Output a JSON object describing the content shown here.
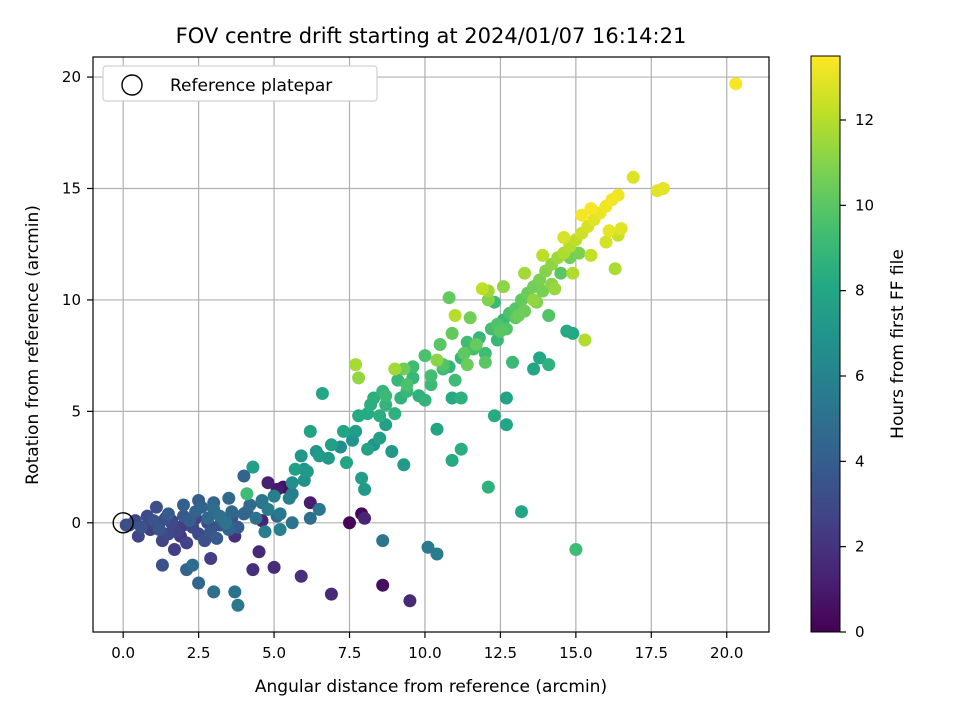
{
  "chart_data": {
    "type": "scatter",
    "title": "FOV centre drift starting at 2024/01/07 16:14:21",
    "xlabel": "Angular distance from reference (arcmin)",
    "ylabel": "Rotation from reference (arcmin)",
    "xlim": [
      -1.0,
      21.4
    ],
    "ylim": [
      -4.9,
      20.9
    ],
    "x_ticks": [
      0.0,
      2.5,
      5.0,
      7.5,
      10.0,
      12.5,
      15.0,
      17.5,
      20.0
    ],
    "x_tick_labels": [
      "0.0",
      "2.5",
      "5.0",
      "7.5",
      "10.0",
      "12.5",
      "15.0",
      "17.5",
      "20.0"
    ],
    "y_ticks": [
      0,
      5,
      10,
      15,
      20
    ],
    "y_tick_labels": [
      "0",
      "5",
      "10",
      "15",
      "20"
    ],
    "grid": true,
    "legend": {
      "placement": "top-left",
      "entries": [
        "Reference platepar"
      ]
    },
    "reference_point": {
      "x": 0.0,
      "y": 0.0
    },
    "colorbar": {
      "label": "Hours from first FF file",
      "colormap": "viridis",
      "range": [
        0,
        13.5
      ],
      "ticks": [
        0,
        2,
        4,
        6,
        8,
        10,
        12
      ],
      "tick_labels": [
        "0",
        "2",
        "4",
        "6",
        "8",
        "10",
        "12"
      ]
    },
    "series": [
      {
        "columns": [
          "x",
          "y",
          "hours"
        ],
        "points": [
          [
            0.2,
            -0.1,
            3.2
          ],
          [
            0.4,
            0.1,
            3.0
          ],
          [
            0.6,
            -0.2,
            3.4
          ],
          [
            0.8,
            0.3,
            3.1
          ],
          [
            1.0,
            0.1,
            3.5
          ],
          [
            1.2,
            -0.3,
            3.6
          ],
          [
            1.4,
            0.2,
            3.3
          ],
          [
            1.6,
            0.0,
            2.9
          ],
          [
            1.8,
            -0.4,
            2.6
          ],
          [
            2.0,
            0.3,
            3.8
          ],
          [
            2.2,
            0.1,
            4.0
          ],
          [
            2.4,
            0.5,
            4.2
          ],
          [
            2.6,
            0.7,
            4.4
          ],
          [
            2.8,
            0.2,
            4.6
          ],
          [
            3.0,
            0.6,
            4.8
          ],
          [
            3.2,
            0.3,
            5.0
          ],
          [
            3.4,
            0.0,
            5.2
          ],
          [
            3.6,
            0.5,
            4.5
          ],
          [
            3.8,
            -0.2,
            3.9
          ],
          [
            4.0,
            0.4,
            4.3
          ],
          [
            4.2,
            0.8,
            4.7
          ],
          [
            4.4,
            0.2,
            5.1
          ],
          [
            4.6,
            1.0,
            5.3
          ],
          [
            4.8,
            0.6,
            5.6
          ],
          [
            5.0,
            1.2,
            5.8
          ],
          [
            5.2,
            0.4,
            5.4
          ],
          [
            0.5,
            -0.6,
            2.8
          ],
          [
            0.9,
            -0.3,
            2.5
          ],
          [
            1.3,
            -0.8,
            2.7
          ],
          [
            1.5,
            -0.5,
            3.0
          ],
          [
            1.7,
            -1.2,
            2.4
          ],
          [
            1.9,
            -0.6,
            2.2
          ],
          [
            2.1,
            -0.9,
            2.6
          ],
          [
            2.3,
            -0.2,
            2.9
          ],
          [
            2.5,
            -0.5,
            3.1
          ],
          [
            2.7,
            -0.8,
            3.3
          ],
          [
            2.9,
            -0.4,
            3.6
          ],
          [
            3.1,
            -0.7,
            3.8
          ],
          [
            3.3,
            0.1,
            4.1
          ],
          [
            3.5,
            -0.3,
            4.4
          ],
          [
            3.7,
            -0.6,
            1.8
          ],
          [
            1.1,
            0.7,
            3.2
          ],
          [
            1.5,
            0.4,
            3.9
          ],
          [
            2.0,
            0.8,
            4.1
          ],
          [
            2.5,
            1.0,
            4.0
          ],
          [
            3.0,
            0.9,
            4.3
          ],
          [
            3.5,
            1.1,
            4.6
          ],
          [
            4.0,
            2.1,
            4.4
          ],
          [
            4.3,
            2.5,
            7.6
          ],
          [
            4.1,
            1.3,
            9.2
          ],
          [
            4.8,
            1.8,
            1.2
          ],
          [
            5.1,
            1.5,
            1.0
          ],
          [
            5.3,
            1.6,
            0.6
          ],
          [
            5.5,
            1.1,
            5.8
          ],
          [
            4.6,
            0.1,
            1.3
          ],
          [
            4.7,
            -0.4,
            5.7
          ],
          [
            5.2,
            -0.3,
            5.9
          ],
          [
            6.2,
            0.9,
            1.1
          ],
          [
            4.5,
            -1.3,
            1.5
          ],
          [
            4.3,
            -2.1,
            1.8
          ],
          [
            5.0,
            -2.0,
            1.7
          ],
          [
            5.9,
            -2.4,
            1.9
          ],
          [
            6.9,
            -3.2,
            1.6
          ],
          [
            3.7,
            -3.1,
            5.1
          ],
          [
            3.8,
            -3.7,
            5.4
          ],
          [
            3.0,
            -3.1,
            4.9
          ],
          [
            2.5,
            -2.7,
            4.5
          ],
          [
            2.3,
            -1.9,
            4.8
          ],
          [
            2.1,
            -2.1,
            4.2
          ],
          [
            1.3,
            -1.9,
            3.3
          ],
          [
            2.9,
            -1.6,
            2.5
          ],
          [
            7.5,
            0.0,
            0.2
          ],
          [
            7.9,
            0.4,
            0.3
          ],
          [
            8.0,
            0.2,
            1.4
          ],
          [
            8.6,
            -2.8,
            0.5
          ],
          [
            9.5,
            -3.5,
            1.6
          ],
          [
            10.1,
            -1.1,
            5.5
          ],
          [
            10.4,
            -1.4,
            5.6
          ],
          [
            8.6,
            -0.8,
            5.3
          ],
          [
            5.6,
            1.3,
            5.7
          ],
          [
            5.7,
            2.4,
            7.6
          ],
          [
            5.9,
            3.0,
            7.1
          ],
          [
            6.1,
            2.3,
            7.3
          ],
          [
            6.0,
            1.9,
            6.8
          ],
          [
            6.2,
            4.1,
            7.8
          ],
          [
            6.6,
            5.8,
            8.0
          ],
          [
            6.4,
            3.2,
            6.9
          ],
          [
            6.8,
            2.9,
            7.2
          ],
          [
            7.2,
            3.4,
            6.6
          ],
          [
            7.4,
            2.7,
            7.9
          ],
          [
            7.6,
            3.7,
            6.8
          ],
          [
            7.7,
            4.1,
            7.4
          ],
          [
            7.9,
            2.0,
            7.5
          ],
          [
            8.0,
            1.5,
            7.3
          ],
          [
            8.1,
            3.3,
            7.8
          ],
          [
            8.3,
            3.5,
            7.0
          ],
          [
            8.5,
            3.8,
            7.6
          ],
          [
            8.7,
            4.4,
            7.7
          ],
          [
            8.9,
            3.2,
            7.2
          ],
          [
            8.1,
            4.9,
            8.2
          ],
          [
            8.3,
            5.6,
            8.5
          ],
          [
            8.5,
            4.8,
            8.4
          ],
          [
            8.7,
            5.3,
            8.8
          ],
          [
            9.0,
            4.9,
            8.6
          ],
          [
            9.2,
            5.6,
            8.7
          ],
          [
            9.4,
            5.9,
            9.0
          ],
          [
            9.6,
            6.5,
            8.9
          ],
          [
            9.8,
            5.7,
            8.6
          ],
          [
            10.0,
            5.5,
            8.8
          ],
          [
            10.2,
            6.2,
            9.1
          ],
          [
            10.4,
            4.2,
            7.9
          ],
          [
            10.6,
            6.9,
            9.3
          ],
          [
            10.8,
            7.0,
            8.8
          ],
          [
            11.0,
            6.4,
            9.2
          ],
          [
            11.2,
            7.4,
            9.0
          ],
          [
            11.4,
            8.1,
            9.3
          ],
          [
            11.6,
            7.8,
            9.5
          ],
          [
            11.8,
            8.3,
            8.9
          ],
          [
            12.0,
            7.6,
            9.2
          ],
          [
            12.2,
            8.7,
            9.4
          ],
          [
            12.4,
            8.9,
            9.7
          ],
          [
            12.6,
            9.1,
            9.1
          ],
          [
            12.8,
            9.4,
            9.6
          ],
          [
            13.0,
            9.6,
            9.9
          ],
          [
            13.2,
            10.0,
            10.2
          ],
          [
            13.4,
            10.3,
            10.4
          ],
          [
            13.6,
            10.6,
            10.6
          ],
          [
            13.8,
            10.9,
            10.8
          ],
          [
            14.0,
            11.3,
            11.0
          ],
          [
            14.2,
            11.6,
            11.2
          ],
          [
            14.4,
            11.9,
            11.5
          ],
          [
            14.6,
            12.1,
            11.8
          ],
          [
            14.8,
            12.4,
            12.0
          ],
          [
            15.0,
            12.7,
            12.2
          ],
          [
            15.2,
            13.0,
            12.5
          ],
          [
            15.4,
            13.3,
            12.7
          ],
          [
            15.6,
            13.6,
            12.9
          ],
          [
            15.8,
            13.9,
            13.1
          ],
          [
            16.0,
            14.2,
            13.2
          ],
          [
            16.2,
            14.5,
            13.3
          ],
          [
            16.4,
            14.7,
            13.2
          ],
          [
            16.9,
            15.5,
            12.8
          ],
          [
            17.7,
            14.9,
            12.9
          ],
          [
            17.9,
            15.0,
            13.0
          ],
          [
            20.3,
            19.7,
            13.4
          ],
          [
            15.5,
            14.1,
            13.4
          ],
          [
            16.1,
            13.1,
            13.0
          ],
          [
            16.4,
            12.9,
            12.4
          ],
          [
            16.3,
            11.4,
            11.8
          ],
          [
            15.1,
            12.1,
            10.8
          ],
          [
            14.8,
            11.9,
            10.6
          ],
          [
            14.5,
            11.2,
            10.0
          ],
          [
            14.2,
            10.7,
            11.1
          ],
          [
            13.9,
            10.4,
            10.7
          ],
          [
            13.6,
            10.0,
            11.3
          ],
          [
            13.3,
            9.5,
            10.5
          ],
          [
            13.0,
            9.2,
            10.1
          ],
          [
            12.7,
            8.7,
            9.8
          ],
          [
            12.4,
            8.2,
            9.0
          ],
          [
            12.1,
            10.4,
            11.5
          ],
          [
            11.9,
            10.5,
            12.2
          ],
          [
            10.8,
            10.1,
            10.2
          ],
          [
            11.0,
            9.3,
            12.0
          ],
          [
            12.3,
            9.9,
            9.1
          ],
          [
            14.1,
            9.3,
            9.8
          ],
          [
            14.9,
            8.5,
            8.1
          ],
          [
            15.3,
            8.2,
            11.9
          ],
          [
            14.7,
            8.6,
            8.2
          ],
          [
            13.8,
            7.4,
            8.1
          ],
          [
            14.1,
            7.1,
            8.6
          ],
          [
            13.6,
            6.9,
            8.0
          ],
          [
            12.9,
            7.2,
            9.1
          ],
          [
            12.0,
            7.2,
            10.0
          ],
          [
            11.4,
            7.1,
            10.4
          ],
          [
            10.4,
            7.3,
            11.1
          ],
          [
            9.3,
            6.9,
            10.5
          ],
          [
            9.0,
            6.9,
            11.6
          ],
          [
            7.8,
            6.5,
            11.3
          ],
          [
            7.7,
            7.1,
            11.7
          ],
          [
            8.7,
            5.7,
            9.1
          ],
          [
            9.4,
            6.2,
            9.6
          ],
          [
            10.9,
            5.6,
            8.2
          ],
          [
            11.2,
            5.6,
            8.6
          ],
          [
            12.3,
            4.8,
            8.3
          ],
          [
            12.7,
            5.6,
            7.8
          ],
          [
            12.7,
            4.4,
            8.0
          ],
          [
            11.2,
            3.3,
            8.4
          ],
          [
            10.9,
            2.8,
            8.2
          ],
          [
            12.1,
            1.6,
            8.6
          ],
          [
            13.2,
            0.5,
            8.0
          ],
          [
            15.0,
            -1.2,
            9.2
          ],
          [
            9.3,
            2.6,
            7.3
          ],
          [
            6.2,
            0.2,
            4.9
          ],
          [
            6.5,
            0.6,
            5.4
          ],
          [
            5.6,
            0.0,
            5.2
          ],
          [
            5.1,
            0.3,
            4.6
          ],
          [
            4.6,
            0.9,
            4.4
          ],
          [
            4.1,
            0.5,
            4.0
          ],
          [
            3.6,
            0.2,
            3.7
          ],
          [
            3.2,
            -0.1,
            3.4
          ],
          [
            2.8,
            0.0,
            3.0
          ],
          [
            2.4,
            0.2,
            2.7
          ],
          [
            2.0,
            -0.1,
            2.4
          ],
          [
            1.6,
            0.1,
            2.1
          ],
          [
            1.2,
            0.0,
            2.3
          ],
          [
            0.8,
            -0.1,
            2.6
          ],
          [
            0.4,
            0.0,
            2.9
          ],
          [
            0.1,
            -0.1,
            3.1
          ],
          [
            10.2,
            6.6,
            9.4
          ],
          [
            10.6,
            7.1,
            9.8
          ],
          [
            11.3,
            7.6,
            10.1
          ],
          [
            11.7,
            8.0,
            10.3
          ],
          [
            12.5,
            8.6,
            10.0
          ],
          [
            13.1,
            9.3,
            10.4
          ],
          [
            13.7,
            9.9,
            10.9
          ],
          [
            14.3,
            10.5,
            11.4
          ],
          [
            14.9,
            11.2,
            11.9
          ],
          [
            15.5,
            12.0,
            12.3
          ],
          [
            16.0,
            12.6,
            12.6
          ],
          [
            16.5,
            13.2,
            12.9
          ],
          [
            15.2,
            13.8,
            13.3
          ],
          [
            14.6,
            12.8,
            12.7
          ],
          [
            13.9,
            12.0,
            12.1
          ],
          [
            13.3,
            11.2,
            11.6
          ],
          [
            12.6,
            10.6,
            11.2
          ],
          [
            12.1,
            10.0,
            10.9
          ],
          [
            11.5,
            9.2,
            10.6
          ],
          [
            10.9,
            8.5,
            10.2
          ],
          [
            10.5,
            8.0,
            9.9
          ],
          [
            10.0,
            7.5,
            9.6
          ],
          [
            9.6,
            7.0,
            9.3
          ],
          [
            9.1,
            6.4,
            9.0
          ],
          [
            8.6,
            5.9,
            8.8
          ],
          [
            8.2,
            5.3,
            8.5
          ],
          [
            7.8,
            4.8,
            8.2
          ],
          [
            7.3,
            4.1,
            7.9
          ],
          [
            6.9,
            3.5,
            7.6
          ],
          [
            6.5,
            3.0,
            7.3
          ],
          [
            6.0,
            2.4,
            7.0
          ],
          [
            5.6,
            1.8,
            6.7
          ]
        ]
      }
    ]
  }
}
